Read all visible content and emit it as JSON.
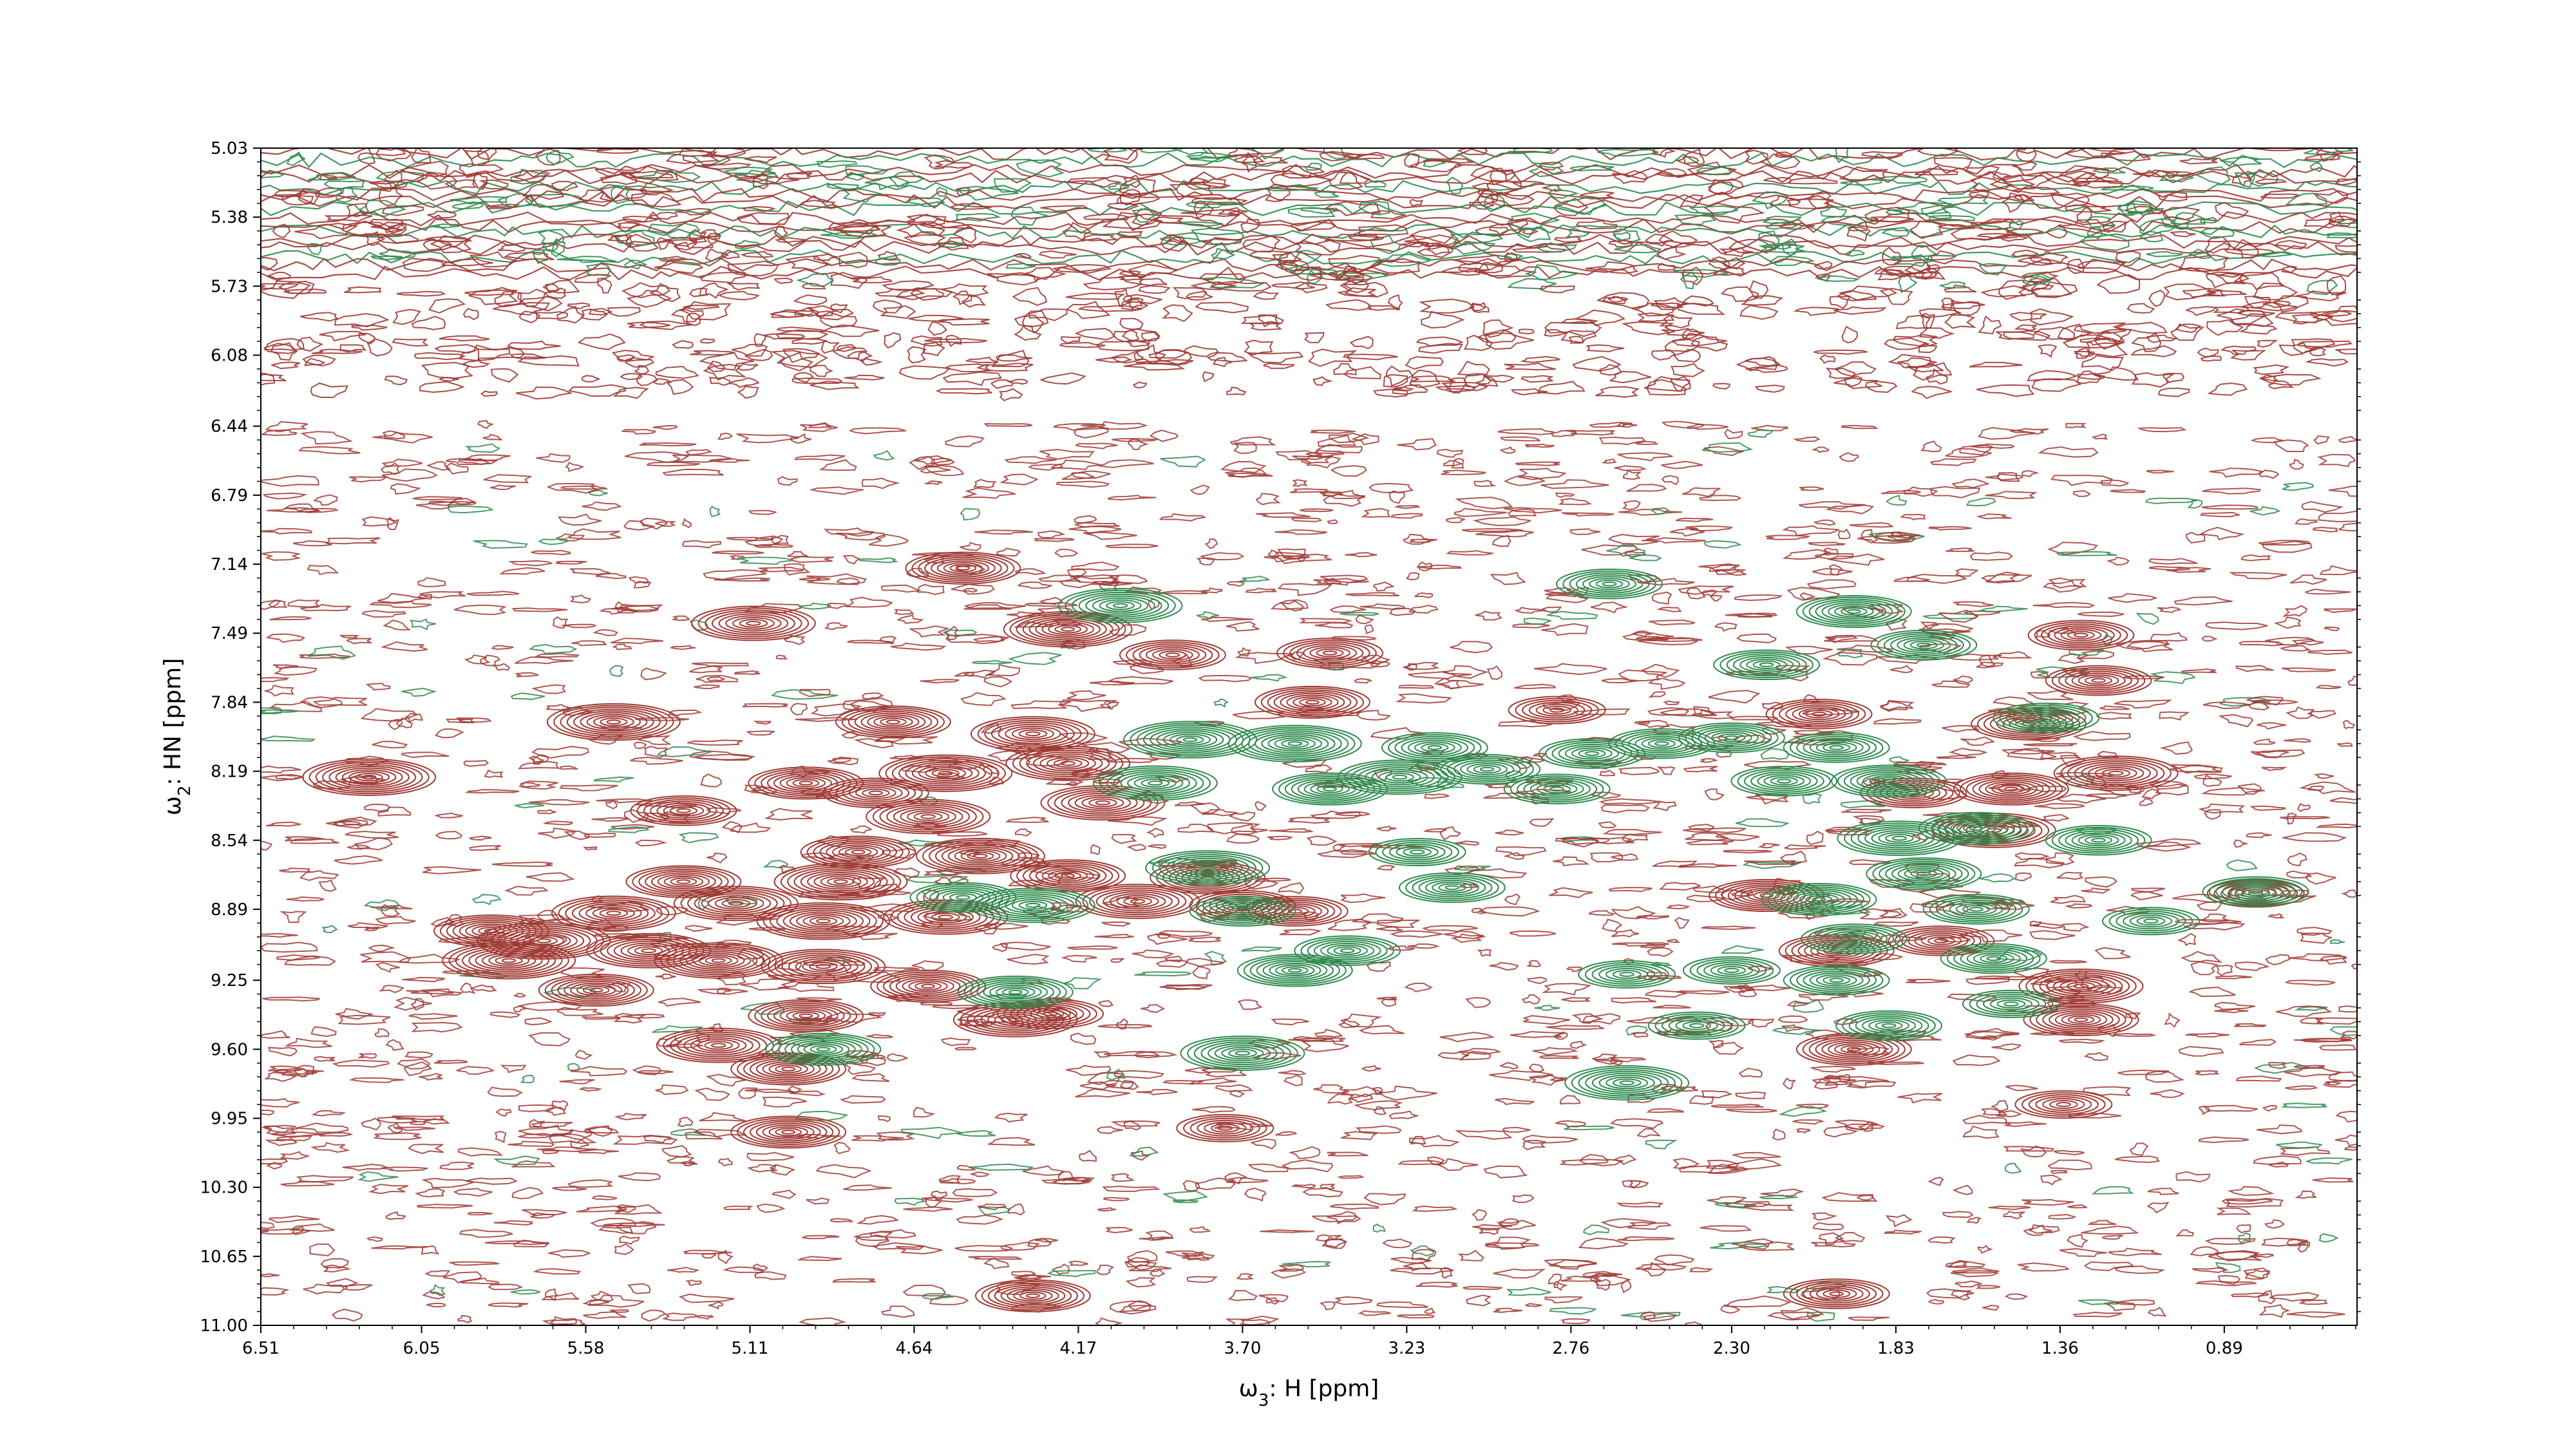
{
  "chart_data": {
    "type": "contour",
    "xlabel_prefix": "ω",
    "xlabel_sub": "3",
    "xlabel_suffix": ": H [ppm]",
    "ylabel_prefix": "ω",
    "ylabel_sub": "2",
    "ylabel_suffix": ": HN [ppm]",
    "xlim": [
      6.51,
      0.51
    ],
    "ylim": [
      11.0,
      5.03
    ],
    "x_ticks": [
      "6.51",
      "6.05",
      "5.58",
      "5.11",
      "4.64",
      "4.17",
      "3.70",
      "3.23",
      "2.76",
      "2.30",
      "1.83",
      "1.36",
      "0.89"
    ],
    "y_ticks": [
      "5.03",
      "5.38",
      "5.73",
      "6.08",
      "6.44",
      "6.79",
      "7.14",
      "7.49",
      "7.84",
      "8.19",
      "8.54",
      "8.89",
      "9.25",
      "9.60",
      "9.95",
      "10.30",
      "10.65",
      "11.00"
    ],
    "colors": {
      "positive": "#a03a34",
      "negative": "#2e8b4e"
    },
    "series": [
      {
        "sign": "positive",
        "peaks": [
          [
            6.2,
            8.22,
            0.9
          ],
          [
            5.8,
            9.15,
            0.9
          ],
          [
            5.5,
            7.94,
            0.9
          ],
          [
            5.1,
            7.44,
            0.8
          ],
          [
            4.2,
            7.47,
            0.85
          ],
          [
            4.5,
            7.16,
            0.7
          ],
          [
            5.3,
            8.39,
            0.6
          ],
          [
            4.95,
            8.25,
            0.7
          ],
          [
            4.75,
            8.3,
            0.6
          ],
          [
            4.6,
            8.42,
            0.8
          ],
          [
            4.55,
            8.2,
            0.9
          ],
          [
            4.3,
            8.0,
            0.8
          ],
          [
            4.2,
            8.15,
            0.8
          ],
          [
            4.1,
            8.35,
            0.8
          ],
          [
            4.45,
            8.62,
            0.85
          ],
          [
            4.8,
            8.6,
            0.7
          ],
          [
            4.85,
            8.75,
            0.9
          ],
          [
            4.2,
            8.72,
            0.7
          ],
          [
            5.3,
            8.75,
            0.7
          ],
          [
            5.15,
            8.86,
            0.8
          ],
          [
            4.9,
            8.95,
            0.9
          ],
          [
            4.55,
            8.93,
            0.8
          ],
          [
            5.5,
            8.91,
            0.8
          ],
          [
            5.85,
            9.0,
            0.7
          ],
          [
            5.7,
            9.05,
            0.9
          ],
          [
            5.4,
            9.1,
            0.8
          ],
          [
            5.2,
            9.15,
            0.85
          ],
          [
            4.9,
            9.18,
            0.8
          ],
          [
            4.6,
            9.28,
            0.7
          ],
          [
            5.55,
            9.3,
            0.7
          ],
          [
            5.2,
            9.58,
            0.8
          ],
          [
            5.0,
            9.7,
            0.7
          ],
          [
            4.95,
            9.43,
            0.7
          ],
          [
            4.35,
            9.45,
            0.8
          ],
          [
            5.0,
            10.02,
            0.7
          ],
          [
            4.3,
            10.85,
            0.7
          ],
          [
            4.0,
            8.85,
            0.8
          ],
          [
            3.8,
            8.73,
            0.7
          ],
          [
            3.55,
            8.9,
            0.6
          ],
          [
            3.5,
            7.84,
            0.7
          ],
          [
            3.9,
            7.6,
            0.6
          ],
          [
            3.45,
            7.59,
            0.6
          ],
          [
            2.8,
            7.88,
            0.5
          ],
          [
            2.05,
            7.9,
            0.6
          ],
          [
            1.78,
            8.3,
            0.6
          ],
          [
            1.5,
            8.28,
            0.7
          ],
          [
            1.55,
            8.49,
            0.8
          ],
          [
            1.45,
            7.95,
            0.7
          ],
          [
            1.2,
            8.2,
            0.8
          ],
          [
            1.3,
            9.28,
            0.8
          ],
          [
            1.3,
            9.45,
            0.7
          ],
          [
            1.25,
            7.73,
            0.6
          ],
          [
            1.3,
            7.5,
            0.6
          ],
          [
            2.2,
            8.82,
            0.7
          ],
          [
            2.0,
            9.1,
            0.7
          ],
          [
            1.95,
            9.6,
            0.7
          ],
          [
            1.7,
            9.05,
            0.6
          ],
          [
            2.0,
            10.84,
            0.6
          ],
          [
            0.8,
            8.81,
            0.5
          ],
          [
            3.75,
            10.0,
            0.5
          ],
          [
            3.7,
            8.87,
            0.6
          ],
          [
            4.7,
            7.94,
            0.7
          ],
          [
            4.25,
            9.42,
            0.6
          ],
          [
            1.35,
            9.88,
            0.5
          ]
        ]
      },
      {
        "sign": "negative",
        "peaks": [
          [
            4.05,
            7.35,
            0.8
          ],
          [
            3.85,
            8.03,
            0.9
          ],
          [
            3.55,
            8.05,
            0.9
          ],
          [
            3.95,
            8.25,
            0.8
          ],
          [
            3.25,
            8.22,
            0.8
          ],
          [
            3.45,
            8.28,
            0.7
          ],
          [
            3.0,
            8.18,
            0.6
          ],
          [
            3.15,
            8.07,
            0.6
          ],
          [
            3.8,
            8.68,
            0.8
          ],
          [
            3.7,
            8.9,
            0.6
          ],
          [
            3.55,
            9.2,
            0.7
          ],
          [
            3.4,
            9.1,
            0.6
          ],
          [
            3.7,
            9.62,
            0.8
          ],
          [
            2.7,
            8.1,
            0.6
          ],
          [
            2.8,
            8.28,
            0.6
          ],
          [
            2.5,
            8.05,
            0.6
          ],
          [
            2.3,
            8.02,
            0.6
          ],
          [
            2.15,
            8.24,
            0.6
          ],
          [
            2.0,
            8.07,
            0.6
          ],
          [
            1.85,
            8.24,
            0.7
          ],
          [
            1.82,
            8.53,
            0.8
          ],
          [
            1.6,
            8.48,
            0.7
          ],
          [
            1.75,
            8.71,
            0.7
          ],
          [
            2.05,
            8.84,
            0.7
          ],
          [
            1.95,
            9.04,
            0.6
          ],
          [
            1.6,
            8.89,
            0.6
          ],
          [
            1.55,
            9.14,
            0.6
          ],
          [
            1.85,
            9.48,
            0.6
          ],
          [
            1.5,
            9.37,
            0.5
          ],
          [
            2.0,
            9.25,
            0.6
          ],
          [
            2.3,
            9.2,
            0.5
          ],
          [
            2.6,
            9.22,
            0.5
          ],
          [
            2.4,
            9.48,
            0.5
          ],
          [
            2.6,
            9.77,
            0.8
          ],
          [
            2.65,
            7.24,
            0.6
          ],
          [
            2.2,
            7.65,
            0.6
          ],
          [
            1.95,
            7.38,
            0.7
          ],
          [
            1.75,
            7.55,
            0.6
          ],
          [
            3.2,
            8.6,
            0.5
          ],
          [
            3.1,
            8.78,
            0.6
          ],
          [
            4.9,
            9.6,
            0.7
          ],
          [
            4.35,
            9.31,
            0.7
          ],
          [
            4.3,
            8.87,
            0.8
          ],
          [
            4.5,
            8.83,
            0.6
          ],
          [
            1.25,
            8.54,
            0.6
          ],
          [
            0.8,
            8.8,
            0.6
          ],
          [
            1.4,
            7.92,
            0.6
          ],
          [
            1.1,
            8.95,
            0.5
          ]
        ]
      }
    ]
  }
}
